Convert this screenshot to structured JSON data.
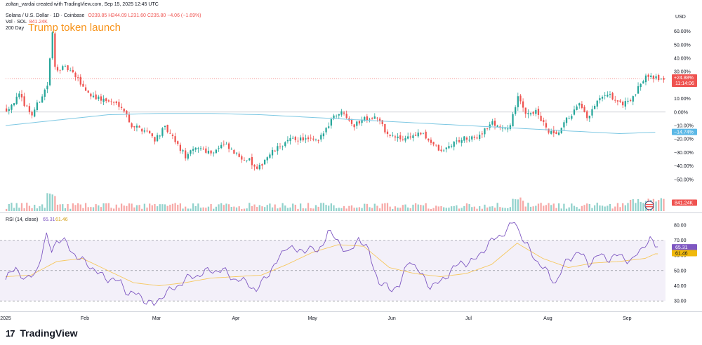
{
  "header": {
    "attribution": "zoltan_vardai created with TradingView.com, Sep 15, 2025 12:45 UTC",
    "symbol_line": "Solana / U.S. Dollar · 1D · Coinbase",
    "ohlc": "O239.85 H244.09 L231.60 C235.80 −4.06 (−1.69%)",
    "vol_label": "Vol · SOL",
    "vol_value": "841.24K",
    "ma_label": "200 Day",
    "annotation": "Trump token launch"
  },
  "colors": {
    "up": "#26a69a",
    "down": "#ef5350",
    "ma": "#7ec8e3",
    "rsi": "#7e57c2",
    "rsi_ma": "#f6c85f",
    "annotation": "#f7931a"
  },
  "brand": {
    "logo": "17",
    "name": "TradingView"
  },
  "chart_data": [
    {
      "type": "candlestick",
      "title": "Solana / U.S. Dollar · 1D · Coinbase",
      "currency": "USD",
      "y_unit": "% change",
      "ylim": [
        -60,
        65
      ],
      "y_ticks": [
        60,
        50,
        40,
        30,
        20,
        10,
        0,
        -10,
        -20,
        -30,
        -40,
        -50
      ],
      "y_tick_labels": [
        "60.00%",
        "50.00%",
        "40.00%",
        "30.00%",
        "20.00%",
        "10.00%",
        "0.00%",
        "−10.00%",
        "−20.00%",
        "−30.00%",
        "−40.00%",
        "−50.00%"
      ],
      "x_labels": [
        "2025",
        "Feb",
        "Mar",
        "Apr",
        "May",
        "Jun",
        "Jul",
        "Aug",
        "Sep"
      ],
      "x_label_positions": [
        0,
        31,
        59,
        90,
        120,
        151,
        181,
        212,
        243
      ],
      "n_days": 258,
      "price_anchors": [
        [
          0,
          2
        ],
        [
          5,
          12
        ],
        [
          10,
          -2
        ],
        [
          16,
          20
        ],
        [
          18,
          58
        ],
        [
          19,
          33
        ],
        [
          24,
          32
        ],
        [
          28,
          24
        ],
        [
          32,
          14
        ],
        [
          36,
          10
        ],
        [
          40,
          8
        ],
        [
          45,
          5
        ],
        [
          49,
          -10
        ],
        [
          55,
          -14
        ],
        [
          58,
          -20
        ],
        [
          62,
          -12
        ],
        [
          66,
          -22
        ],
        [
          70,
          -33
        ],
        [
          75,
          -26
        ],
        [
          80,
          -30
        ],
        [
          85,
          -24
        ],
        [
          90,
          -32
        ],
        [
          95,
          -36
        ],
        [
          98,
          -44
        ],
        [
          101,
          -35
        ],
        [
          104,
          -30
        ],
        [
          108,
          -24
        ],
        [
          112,
          -20
        ],
        [
          116,
          -20
        ],
        [
          122,
          -22
        ],
        [
          128,
          -2
        ],
        [
          132,
          0
        ],
        [
          136,
          -10
        ],
        [
          140,
          -4
        ],
        [
          145,
          -4
        ],
        [
          149,
          -17
        ],
        [
          154,
          -20
        ],
        [
          158,
          -18
        ],
        [
          162,
          -16
        ],
        [
          166,
          -22
        ],
        [
          170,
          -30
        ],
        [
          174,
          -24
        ],
        [
          178,
          -20
        ],
        [
          183,
          -20
        ],
        [
          190,
          -8
        ],
        [
          196,
          -14
        ],
        [
          200,
          10
        ],
        [
          203,
          0
        ],
        [
          207,
          0
        ],
        [
          212,
          -15
        ],
        [
          215,
          -18
        ],
        [
          219,
          -6
        ],
        [
          224,
          5
        ],
        [
          227,
          -5
        ],
        [
          232,
          10
        ],
        [
          236,
          12
        ],
        [
          240,
          6
        ],
        [
          245,
          10
        ],
        [
          250,
          28
        ],
        [
          252,
          28
        ],
        [
          254,
          25
        ]
      ],
      "ma_label": "200 Day",
      "ma_anchors": [
        [
          0,
          -10
        ],
        [
          20,
          -6
        ],
        [
          40,
          -2
        ],
        [
          60,
          -1
        ],
        [
          80,
          -1
        ],
        [
          100,
          -2
        ],
        [
          120,
          -4
        ],
        [
          140,
          -6
        ],
        [
          160,
          -8
        ],
        [
          180,
          -10
        ],
        [
          200,
          -12
        ],
        [
          220,
          -14
        ],
        [
          240,
          -16
        ],
        [
          254,
          -15
        ]
      ],
      "last_change_label": "+24.88%",
      "last_change_value": 24.88,
      "countdown": "11:14:06",
      "ma_last_label": "−14.74%",
      "ma_last_value": -14.74,
      "volume_label": "841.24K",
      "annotation": {
        "text": "Trump token launch",
        "day": 18
      }
    },
    {
      "type": "line",
      "title": "RSI (14, close)",
      "series": [
        {
          "name": "RSI",
          "last": 65.31,
          "last_label": "65.31",
          "anchors": [
            [
              0,
              44
            ],
            [
              4,
              52
            ],
            [
              8,
              43
            ],
            [
              12,
              50
            ],
            [
              14,
              60
            ],
            [
              16,
              72
            ],
            [
              18,
              64
            ],
            [
              20,
              70
            ],
            [
              24,
              68
            ],
            [
              28,
              58
            ],
            [
              32,
              55
            ],
            [
              36,
              48
            ],
            [
              40,
              45
            ],
            [
              45,
              42
            ],
            [
              48,
              35
            ],
            [
              52,
              34
            ],
            [
              55,
              30
            ],
            [
              58,
              27
            ],
            [
              62,
              35
            ],
            [
              66,
              38
            ],
            [
              70,
              44
            ],
            [
              75,
              47
            ],
            [
              80,
              50
            ],
            [
              85,
              50
            ],
            [
              90,
              44
            ],
            [
              95,
              42
            ],
            [
              98,
              36
            ],
            [
              102,
              47
            ],
            [
              106,
              55
            ],
            [
              110,
              67
            ],
            [
              114,
              62
            ],
            [
              118,
              65
            ],
            [
              122,
              62
            ],
            [
              126,
              75
            ],
            [
              130,
              70
            ],
            [
              134,
              60
            ],
            [
              138,
              72
            ],
            [
              142,
              62
            ],
            [
              146,
              42
            ],
            [
              150,
              38
            ],
            [
              154,
              40
            ],
            [
              158,
              58
            ],
            [
              162,
              48
            ],
            [
              166,
              40
            ],
            [
              170,
              42
            ],
            [
              174,
              50
            ],
            [
              178,
              55
            ],
            [
              183,
              56
            ],
            [
              188,
              66
            ],
            [
              192,
              72
            ],
            [
              196,
              76
            ],
            [
              199,
              83
            ],
            [
              203,
              68
            ],
            [
              207,
              58
            ],
            [
              212,
              48
            ],
            [
              215,
              42
            ],
            [
              220,
              58
            ],
            [
              224,
              62
            ],
            [
              228,
              55
            ],
            [
              232,
              60
            ],
            [
              236,
              58
            ],
            [
              240,
              60
            ],
            [
              245,
              56
            ],
            [
              250,
              68
            ],
            [
              252,
              70
            ],
            [
              254,
              66
            ]
          ]
        },
        {
          "name": "RSI-based MA",
          "last": 61.46,
          "last_label": "61.46",
          "anchors": [
            [
              0,
              46
            ],
            [
              10,
              47
            ],
            [
              20,
              56
            ],
            [
              30,
              58
            ],
            [
              40,
              50
            ],
            [
              50,
              42
            ],
            [
              60,
              40
            ],
            [
              70,
              42
            ],
            [
              80,
              45
            ],
            [
              90,
              46
            ],
            [
              100,
              47
            ],
            [
              110,
              54
            ],
            [
              120,
              62
            ],
            [
              130,
              67
            ],
            [
              140,
              66
            ],
            [
              150,
              52
            ],
            [
              160,
              48
            ],
            [
              170,
              46
            ],
            [
              180,
              48
            ],
            [
              190,
              54
            ],
            [
              200,
              68
            ],
            [
              210,
              58
            ],
            [
              220,
              52
            ],
            [
              230,
              55
            ],
            [
              240,
              56
            ],
            [
              250,
              58
            ],
            [
              254,
              61
            ]
          ]
        }
      ],
      "ylim": [
        25,
        85
      ],
      "y_ticks": [
        80,
        70,
        60,
        50,
        40,
        30
      ],
      "y_tick_labels": [
        "80.00",
        "70.00",
        "60.00",
        "50.00",
        "40.00",
        "30.00"
      ],
      "bands": {
        "upper": 70,
        "middle": 50,
        "lower": 30
      }
    }
  ]
}
